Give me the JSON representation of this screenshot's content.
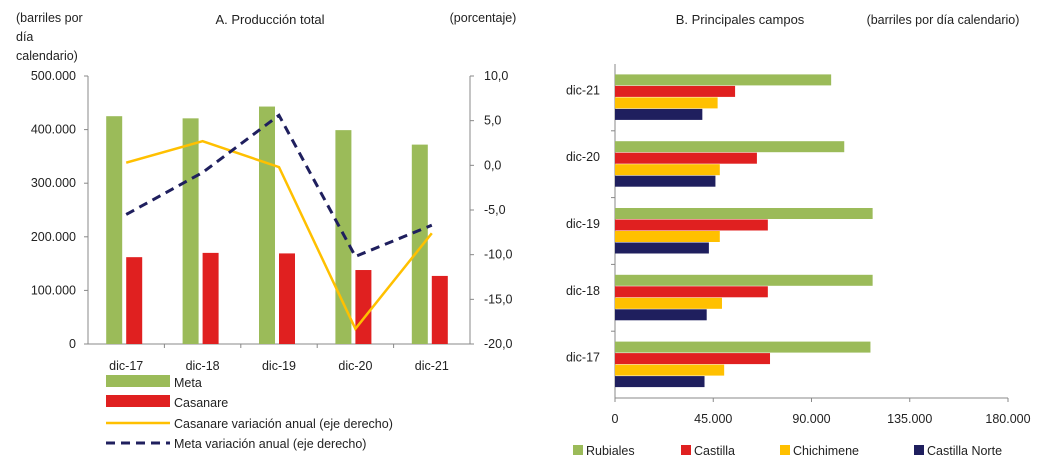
{
  "chart_data": [
    {
      "type": "bar",
      "title": "A. Producción total",
      "ylabel_left": [
        "(barriles por",
        "día",
        "calendario)"
      ],
      "ylabel_right": "(porcentaje)",
      "categories": [
        "dic-17",
        "dic-18",
        "dic-19",
        "dic-20",
        "dic-21"
      ],
      "ylim_left": [
        0,
        500000
      ],
      "ylim_right": [
        -20,
        10
      ],
      "yticks_left": [
        "0",
        "100.000",
        "200.000",
        "300.000",
        "400.000",
        "500.000"
      ],
      "yticks_right": [
        "-20,0",
        "-15,0",
        "-10,0",
        "-5,0",
        "0,0",
        "5,0",
        "10,0"
      ],
      "series": [
        {
          "name": "Meta",
          "type": "bar",
          "axis": "left",
          "color": "#9BBB59",
          "values": [
            425000,
            421000,
            443000,
            399000,
            372000
          ]
        },
        {
          "name": "Casanare",
          "type": "bar",
          "axis": "left",
          "color": "#E02020",
          "values": [
            162000,
            170000,
            169000,
            138000,
            127000
          ]
        },
        {
          "name": "Casanare variación anual (eje derecho)",
          "type": "line",
          "axis": "right",
          "color": "#FFC000",
          "values": [
            0.3,
            2.7,
            -0.2,
            -18.3,
            -7.6
          ]
        },
        {
          "name": "Meta variación anual (eje derecho)",
          "type": "line",
          "axis": "right",
          "color": "#1F1F5E",
          "dashed": true,
          "values": [
            -5.5,
            -0.8,
            5.6,
            -10.2,
            -6.7
          ]
        }
      ],
      "legend_position": "bottom"
    },
    {
      "type": "bar",
      "orientation": "horizontal",
      "title": "B. Principales campos",
      "xlabel": "(barriles por día calendario)",
      "categories": [
        "dic-21",
        "dic-20",
        "dic-19",
        "dic-18",
        "dic-17"
      ],
      "xlim": [
        0,
        180000
      ],
      "xticks": [
        "0",
        "45.000",
        "90.000",
        "135.000",
        "180.000"
      ],
      "series": [
        {
          "name": "Rubiales",
          "color": "#9BBB59",
          "values": [
            99000,
            105000,
            118000,
            118000,
            117000
          ]
        },
        {
          "name": "Castilla",
          "color": "#E02020",
          "values": [
            55000,
            65000,
            70000,
            70000,
            71000
          ]
        },
        {
          "name": "Chichimene",
          "color": "#FFC000",
          "values": [
            47000,
            48000,
            48000,
            49000,
            50000
          ]
        },
        {
          "name": "Castilla Norte",
          "color": "#1F1F5E",
          "values": [
            40000,
            46000,
            43000,
            42000,
            41000
          ]
        }
      ],
      "legend_position": "bottom"
    }
  ]
}
